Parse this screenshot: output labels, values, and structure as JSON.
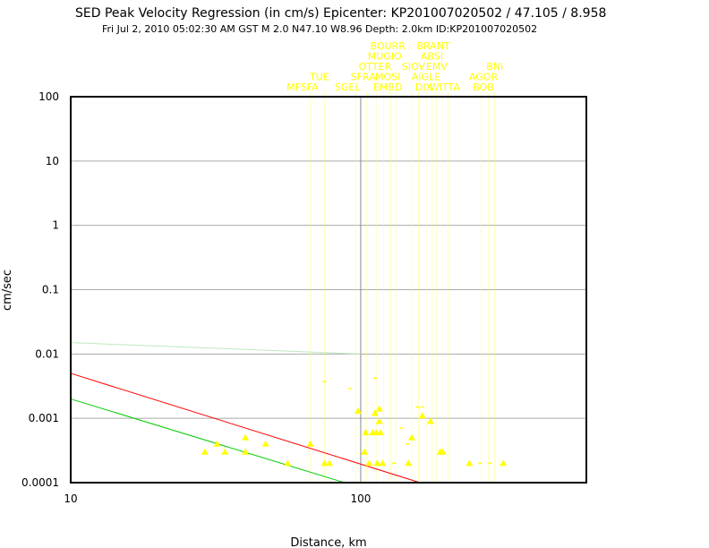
{
  "chart_data": {
    "type": "scatter",
    "title": "SED Peak Velocity Regression (in cm/s) Epicenter: KP201007020502 / 47.105 / 8.958",
    "subtitle": "Fri Jul  2, 2010 05:02:30 AM GST   M 2.0   N47.10 W8.96   Depth: 2.0km   ID:KP201007020502",
    "xlabel": "Distance, km",
    "ylabel": "cm/sec",
    "x_scale": "log",
    "y_scale": "log",
    "xlim": [
      10,
      600
    ],
    "ylim": [
      0.0001,
      100
    ],
    "x_ticks": [
      {
        "v": 10,
        "label": "10"
      },
      {
        "v": 100,
        "label": "100"
      }
    ],
    "y_ticks": [
      {
        "v": 100,
        "label": "100"
      },
      {
        "v": 10,
        "label": "10"
      },
      {
        "v": 1,
        "label": "1"
      },
      {
        "v": 0.1,
        "label": "0.1"
      },
      {
        "v": 0.01,
        "label": "0.01"
      },
      {
        "v": 0.001,
        "label": "0.001"
      },
      {
        "v": 0.0001,
        "label": "0.0001"
      }
    ],
    "grid": true,
    "colors": {
      "points": "#ffff00",
      "red_line": "#ff0000",
      "green_line": "#00cc00",
      "faint_line": "#bfe8bf",
      "frame": "#000000",
      "grid": "#aaaaaa"
    },
    "regression_lines": [
      {
        "color": "#ff0000",
        "x": [
          10,
          160
        ],
        "y": [
          0.005,
          0.0001
        ]
      },
      {
        "color": "#00cc00",
        "x": [
          10,
          88
        ],
        "y": [
          0.002,
          0.0001
        ]
      },
      {
        "color": "#bfe8bf",
        "x": [
          10,
          100
        ],
        "y": [
          0.015,
          0.01
        ]
      }
    ],
    "epicenter_marker_x": 100,
    "station_labels": [
      {
        "text": "MFSFA",
        "row": 0,
        "x": 63
      },
      {
        "text": "SGEL",
        "row": 0,
        "x": 90
      },
      {
        "text": "EMBD",
        "row": 0,
        "x": 124
      },
      {
        "text": "DIX",
        "row": 0,
        "x": 165
      },
      {
        "text": "WITTA",
        "row": 0,
        "x": 195
      },
      {
        "text": "BOB",
        "row": 0,
        "x": 265
      },
      {
        "text": "TUE",
        "row": 1,
        "x": 72
      },
      {
        "text": "SFRA",
        "row": 1,
        "x": 102
      },
      {
        "text": "MOSI",
        "row": 1,
        "x": 124
      },
      {
        "text": "AIGLE",
        "row": 1,
        "x": 168
      },
      {
        "text": "AGOR",
        "row": 1,
        "x": 265
      },
      {
        "text": "OTTER",
        "row": 2,
        "x": 112
      },
      {
        "text": "SIOV",
        "row": 2,
        "x": 152
      },
      {
        "text": "EMV",
        "row": 2,
        "x": 183
      },
      {
        "text": "BNI",
        "row": 2,
        "x": 290
      },
      {
        "text": "MUGIO",
        "row": 3,
        "x": 121
      },
      {
        "text": "ABSI",
        "row": 3,
        "x": 176
      },
      {
        "text": "BOURR",
        "row": 4,
        "x": 124
      },
      {
        "text": "BRANT",
        "row": 4,
        "x": 178
      }
    ],
    "guide_lines_x": [
      67,
      75,
      96,
      105,
      113,
      120,
      127,
      132,
      150,
      158,
      168,
      176,
      182,
      190,
      200,
      260,
      275,
      290
    ],
    "points": [
      {
        "x": 29,
        "y": 0.0003
      },
      {
        "x": 32,
        "y": 0.0004
      },
      {
        "x": 34,
        "y": 0.0003
      },
      {
        "x": 40,
        "y": 0.0005
      },
      {
        "x": 40,
        "y": 0.0003
      },
      {
        "x": 47,
        "y": 0.0004
      },
      {
        "x": 56,
        "y": 0.0002
      },
      {
        "x": 67,
        "y": 0.0004
      },
      {
        "x": 75,
        "y": 0.0002
      },
      {
        "x": 78,
        "y": 0.0002
      },
      {
        "x": 98,
        "y": 0.0013
      },
      {
        "x": 103,
        "y": 0.0003
      },
      {
        "x": 104,
        "y": 0.0006
      },
      {
        "x": 107,
        "y": 0.0002
      },
      {
        "x": 110,
        "y": 0.0006
      },
      {
        "x": 112,
        "y": 0.0012
      },
      {
        "x": 113,
        "y": 0.0006
      },
      {
        "x": 114,
        "y": 0.0002
      },
      {
        "x": 116,
        "y": 0.0014
      },
      {
        "x": 116,
        "y": 0.0009
      },
      {
        "x": 117,
        "y": 0.0006
      },
      {
        "x": 119,
        "y": 0.0002
      },
      {
        "x": 146,
        "y": 0.0002
      },
      {
        "x": 150,
        "y": 0.0005
      },
      {
        "x": 163,
        "y": 0.0011
      },
      {
        "x": 174,
        "y": 0.0009
      },
      {
        "x": 188,
        "y": 0.0003
      },
      {
        "x": 192,
        "y": 0.0003
      },
      {
        "x": 237,
        "y": 0.0002
      },
      {
        "x": 310,
        "y": 0.0002
      }
    ],
    "small_marks": [
      {
        "x": 75,
        "y": 0.0037
      },
      {
        "x": 92,
        "y": 0.0029
      },
      {
        "x": 112,
        "y": 0.0042
      },
      {
        "x": 138,
        "y": 0.0007
      },
      {
        "x": 145,
        "y": 0.0004
      },
      {
        "x": 157,
        "y": 0.0015
      },
      {
        "x": 163,
        "y": 0.0015
      },
      {
        "x": 130,
        "y": 0.0002
      },
      {
        "x": 258,
        "y": 0.0002
      },
      {
        "x": 278,
        "y": 0.0002
      },
      {
        "x": 29,
        "y": 0.0001
      },
      {
        "x": 45,
        "y": 0.0001
      },
      {
        "x": 48,
        "y": 0.0001
      },
      {
        "x": 66,
        "y": 0.0001
      },
      {
        "x": 72,
        "y": 0.0001
      },
      {
        "x": 76,
        "y": 0.0001
      },
      {
        "x": 80,
        "y": 0.0001
      },
      {
        "x": 112,
        "y": 0.0001
      },
      {
        "x": 120,
        "y": 0.0001
      },
      {
        "x": 180,
        "y": 0.0001
      },
      {
        "x": 186,
        "y": 0.0001
      },
      {
        "x": 215,
        "y": 0.0001
      }
    ]
  }
}
